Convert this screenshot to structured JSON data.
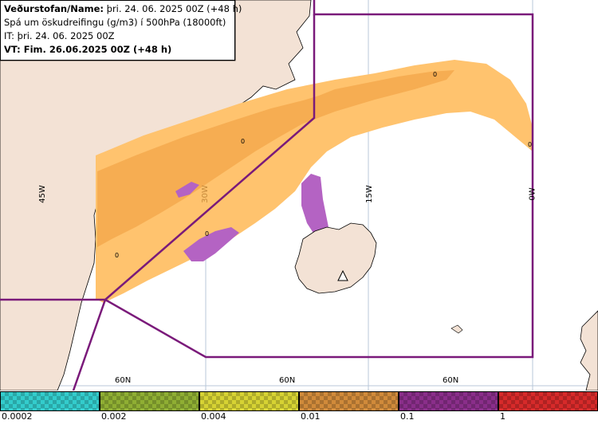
{
  "info": {
    "line1_label": "Veðurstofan/Name:",
    "line1_value": " þri. 24. 06. 2025 00Z (+48 h)",
    "line2": "Spá um öskudreifingu (g/m3) í 500hPa (18000ft)",
    "line3": "IT: þri. 24. 06. 2025 00Z",
    "line4": "VT: Fim. 26.06.2025 00Z (+48 h)"
  },
  "map": {
    "lon_labels": [
      "45W",
      "30W",
      "15W",
      "0W"
    ],
    "lat_labels": [
      "60N",
      "60N",
      "60N"
    ],
    "contour_label": "0",
    "colors": {
      "land": "#f3e2d5",
      "sea": "#ffffff",
      "ash_light": "#ffc36e",
      "ash_medium": "#f5a94e",
      "ash_heavy": "#b463c3",
      "fir_boundary": "#7a1a7a",
      "graticule": "#b8c7d8"
    }
  },
  "colorbar": {
    "colors": [
      "#33cccc",
      "#8fae33",
      "#d6d233",
      "#d08a3a",
      "#8a2e8a",
      "#d62a2a"
    ],
    "ticks": [
      "0.0002",
      "0.002",
      "0.004",
      "0.01",
      "0.1",
      "1"
    ]
  }
}
